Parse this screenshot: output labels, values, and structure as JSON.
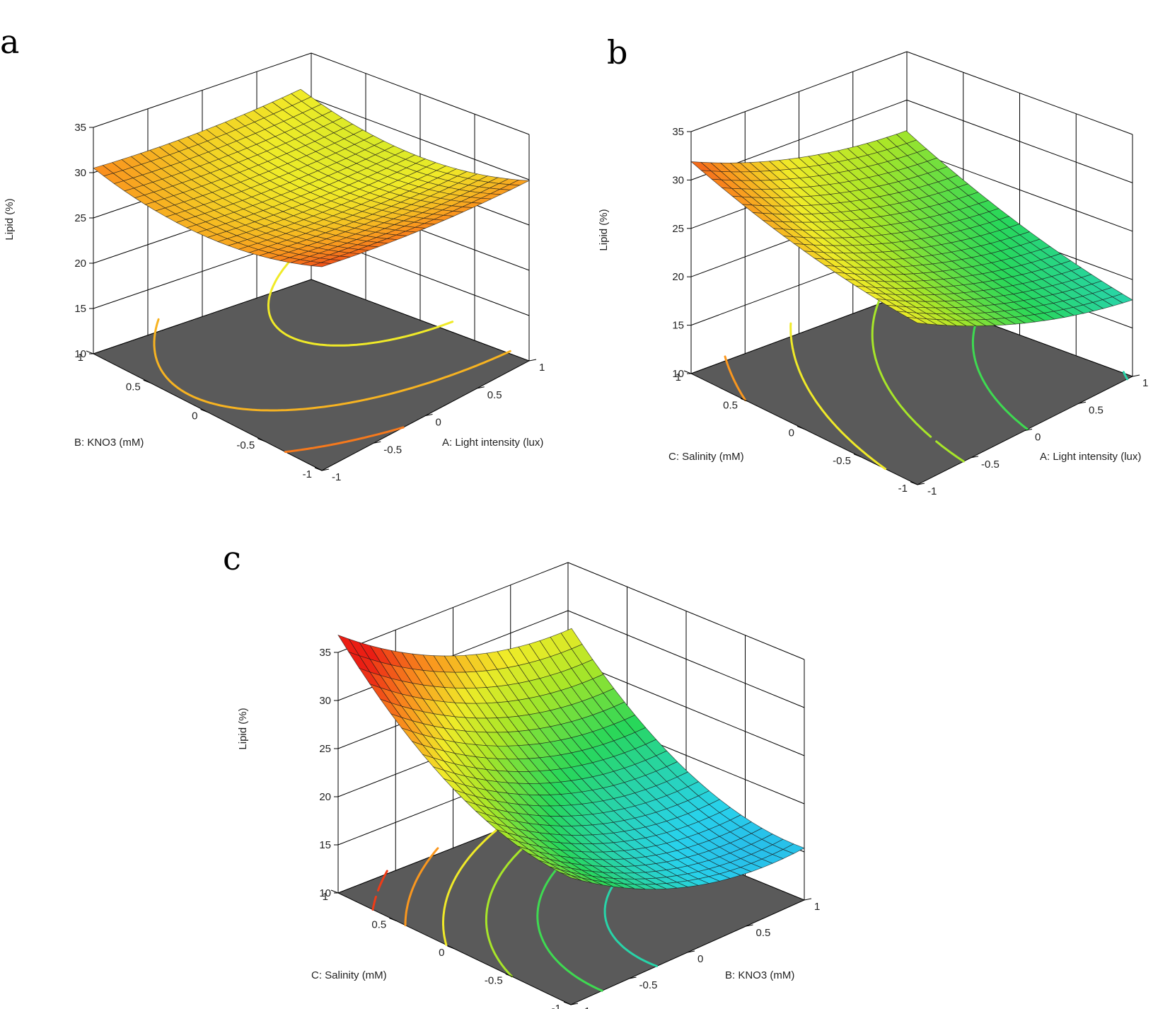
{
  "chart_data": [
    {
      "type": "surface3d",
      "panel_label": "a",
      "xlabel": "A: Light intensity (lux)",
      "ylabel": "B: KNO3 (mM)",
      "zlabel": "Lipid (%)",
      "x_ticks": [
        "-1",
        "-0.5",
        "0",
        "0.5",
        "1"
      ],
      "y_ticks": [
        "-1",
        "-0.5",
        "0",
        "0.5",
        "1"
      ],
      "z_ticks": [
        "10",
        "15",
        "20",
        "25",
        "30",
        "35"
      ],
      "xlim": [
        -1,
        1
      ],
      "ylim": [
        -1,
        1
      ],
      "zlim": [
        10,
        35
      ],
      "surface": {
        "b0": 27.3,
        "bA": -1.5,
        "bB": -1.2,
        "bAB": -0.2,
        "bAA": 0.5,
        "bBB": 2.2
      },
      "contour_levels": [
        25,
        27,
        29,
        31,
        33
      ],
      "floor_color": "#5a5a5a"
    },
    {
      "type": "surface3d",
      "panel_label": "b",
      "xlabel": "A: Light intensity (lux)",
      "ylabel": "C: Salinity (mM)",
      "zlabel": "Lipid (%)",
      "x_ticks": [
        "-1",
        "-0.5",
        "0",
        "0.5",
        "1"
      ],
      "y_ticks": [
        "-1",
        "-0.5",
        "0",
        "0.5",
        "1"
      ],
      "z_ticks": [
        "10",
        "15",
        "20",
        "25",
        "30",
        "35"
      ],
      "xlim": [
        -1,
        1
      ],
      "ylim": [
        -1,
        1
      ],
      "zlim": [
        10,
        35
      ],
      "surface": {
        "b0": 23.0,
        "bA": -4.2,
        "bB": 2.8,
        "bAB": 0.2,
        "bAA": 1.2,
        "bBB": 0.9
      },
      "contour_levels": [
        18,
        21,
        24,
        27,
        30,
        33
      ],
      "floor_color": "#5a5a5a"
    },
    {
      "type": "surface3d",
      "panel_label": "c",
      "xlabel": "B: KNO3 (mM)",
      "ylabel": "C: Salinity (mM)",
      "zlabel": "Lipid (%)",
      "x_ticks": [
        "-1",
        "-0.5",
        "0",
        "0.5",
        "1"
      ],
      "y_ticks": [
        "-1",
        "-0.5",
        "0",
        "0.5",
        "1"
      ],
      "z_ticks": [
        "10",
        "15",
        "20",
        "25",
        "30",
        "35"
      ],
      "xlim": [
        -1,
        1
      ],
      "ylim": [
        -1,
        1
      ],
      "zlim": [
        10,
        35
      ],
      "surface": {
        "b0": 19.5,
        "bA": -4.5,
        "bB": 6.2,
        "bAB": -0.6,
        "bAA": 2.5,
        "bBB": 3.5
      },
      "contour_levels": [
        15,
        18,
        21,
        24,
        27,
        30,
        33
      ],
      "floor_color": "#5a5a5a"
    }
  ]
}
